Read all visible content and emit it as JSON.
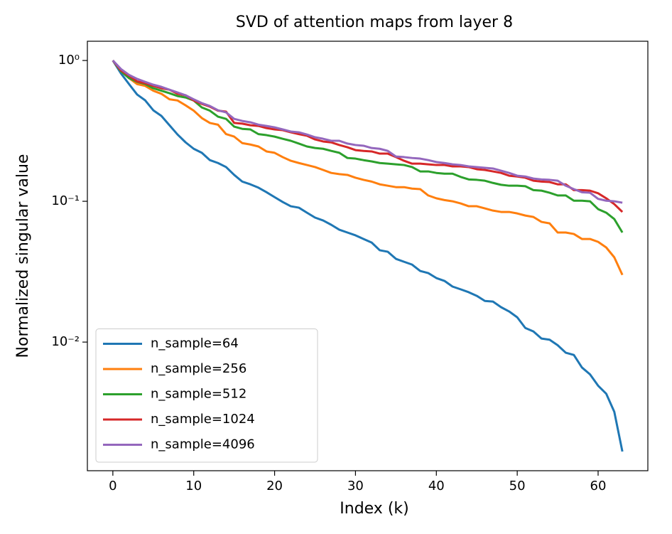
{
  "chart_data": {
    "type": "line",
    "title": "SVD of attention maps from layer 8",
    "x_label": "Index (k)",
    "y_label": "Normalized singular value",
    "x": [
      0,
      1,
      2,
      3,
      4,
      5,
      6,
      7,
      8,
      9,
      10,
      11,
      12,
      13,
      14,
      15,
      16,
      17,
      18,
      19,
      20,
      21,
      22,
      23,
      24,
      25,
      26,
      27,
      28,
      29,
      30,
      31,
      32,
      33,
      34,
      35,
      36,
      37,
      38,
      39,
      40,
      41,
      42,
      43,
      44,
      45,
      46,
      47,
      48,
      49,
      50,
      51,
      52,
      53,
      54,
      55,
      56,
      57,
      58,
      59,
      60,
      61,
      62,
      63
    ],
    "xlim": [
      -3.15,
      66.15
    ],
    "xticks": [
      0,
      10,
      20,
      30,
      40,
      50,
      60
    ],
    "ylim": [
      0.00122,
      1.37
    ],
    "yscale": "log",
    "yticks": [
      {
        "value": 1,
        "label": "10⁰"
      },
      {
        "value": 0.1,
        "label": "10⁻¹"
      },
      {
        "value": 0.01,
        "label": "10⁻²"
      }
    ],
    "legend": "lower left",
    "series": [
      {
        "name": "n_sample=64",
        "color": "#1f77b4",
        "values": [
          1.0,
          0.81,
          0.68,
          0.573,
          0.521,
          0.443,
          0.404,
          0.347,
          0.298,
          0.262,
          0.236,
          0.221,
          0.196,
          0.187,
          0.175,
          0.154,
          0.138,
          0.132,
          0.125,
          0.116,
          0.107,
          0.0989,
          0.0922,
          0.0901,
          0.083,
          0.0766,
          0.0731,
          0.0681,
          0.0628,
          0.06,
          0.0573,
          0.054,
          0.0509,
          0.0449,
          0.0438,
          0.039,
          0.0372,
          0.0355,
          0.032,
          0.0309,
          0.0285,
          0.0272,
          0.0248,
          0.0237,
          0.0226,
          0.0213,
          0.0196,
          0.0194,
          0.0177,
          0.0165,
          0.015,
          0.0126,
          0.0119,
          0.0106,
          0.0104,
          0.0095,
          0.0084,
          0.0081,
          0.0066,
          0.0059,
          0.0049,
          0.0043,
          0.0032,
          0.00167
        ]
      },
      {
        "name": "n_sample=256",
        "color": "#ff7f0e",
        "values": [
          1.0,
          0.84,
          0.75,
          0.68,
          0.66,
          0.61,
          0.58,
          0.53,
          0.52,
          0.48,
          0.44,
          0.39,
          0.36,
          0.35,
          0.3,
          0.288,
          0.259,
          0.253,
          0.245,
          0.226,
          0.221,
          0.206,
          0.194,
          0.187,
          0.181,
          0.175,
          0.167,
          0.159,
          0.156,
          0.154,
          0.147,
          0.142,
          0.138,
          0.132,
          0.129,
          0.126,
          0.126,
          0.123,
          0.122,
          0.11,
          0.105,
          0.102,
          0.1,
          0.0966,
          0.0922,
          0.0922,
          0.089,
          0.0859,
          0.084,
          0.084,
          0.082,
          0.0792,
          0.0774,
          0.0714,
          0.0697,
          0.06,
          0.06,
          0.0586,
          0.054,
          0.054,
          0.0515,
          0.047,
          0.04,
          0.03
        ]
      },
      {
        "name": "n_sample=512",
        "color": "#2ca02c",
        "values": [
          1.0,
          0.84,
          0.75,
          0.705,
          0.68,
          0.635,
          0.61,
          0.586,
          0.559,
          0.546,
          0.52,
          0.464,
          0.44,
          0.399,
          0.385,
          0.339,
          0.327,
          0.324,
          0.3,
          0.295,
          0.288,
          0.278,
          0.269,
          0.257,
          0.245,
          0.239,
          0.236,
          0.228,
          0.221,
          0.203,
          0.201,
          0.196,
          0.192,
          0.187,
          0.185,
          0.183,
          0.181,
          0.175,
          0.163,
          0.163,
          0.159,
          0.157,
          0.157,
          0.149,
          0.143,
          0.142,
          0.14,
          0.135,
          0.131,
          0.129,
          0.129,
          0.128,
          0.12,
          0.119,
          0.115,
          0.11,
          0.11,
          0.101,
          0.101,
          0.1,
          0.088,
          0.083,
          0.0748,
          0.06
        ]
      },
      {
        "name": "n_sample=1024",
        "color": "#d62728",
        "values": [
          1.0,
          0.85,
          0.78,
          0.71,
          0.69,
          0.66,
          0.635,
          0.62,
          0.58,
          0.566,
          0.52,
          0.492,
          0.47,
          0.44,
          0.433,
          0.36,
          0.356,
          0.347,
          0.343,
          0.331,
          0.324,
          0.32,
          0.309,
          0.3,
          0.292,
          0.275,
          0.266,
          0.262,
          0.251,
          0.242,
          0.231,
          0.228,
          0.226,
          0.218,
          0.218,
          0.206,
          0.194,
          0.185,
          0.185,
          0.183,
          0.181,
          0.181,
          0.177,
          0.177,
          0.175,
          0.169,
          0.167,
          0.163,
          0.159,
          0.152,
          0.15,
          0.147,
          0.14,
          0.138,
          0.137,
          0.132,
          0.132,
          0.12,
          0.12,
          0.119,
          0.114,
          0.105,
          0.0955,
          0.084
        ]
      },
      {
        "name": "n_sample=4096",
        "color": "#9467bd",
        "values": [
          1.0,
          0.87,
          0.79,
          0.74,
          0.705,
          0.673,
          0.65,
          0.62,
          0.593,
          0.566,
          0.53,
          0.498,
          0.475,
          0.443,
          0.428,
          0.385,
          0.372,
          0.364,
          0.35,
          0.343,
          0.335,
          0.324,
          0.313,
          0.309,
          0.298,
          0.285,
          0.278,
          0.269,
          0.269,
          0.257,
          0.251,
          0.248,
          0.239,
          0.236,
          0.228,
          0.208,
          0.206,
          0.203,
          0.201,
          0.196,
          0.19,
          0.187,
          0.183,
          0.181,
          0.177,
          0.175,
          0.173,
          0.171,
          0.165,
          0.159,
          0.152,
          0.15,
          0.145,
          0.143,
          0.142,
          0.14,
          0.129,
          0.122,
          0.116,
          0.115,
          0.104,
          0.101,
          0.1,
          0.0977
        ]
      }
    ]
  }
}
